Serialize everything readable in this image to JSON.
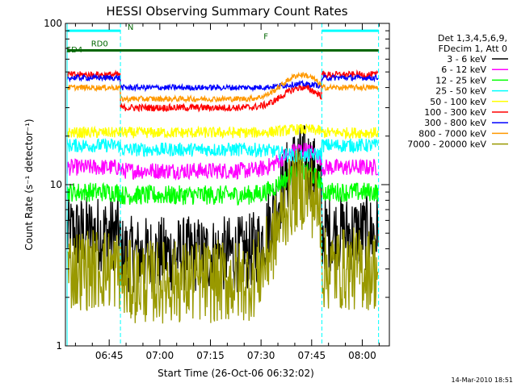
{
  "chart_data": {
    "type": "line",
    "title": "HESSI Observing Summary Count Rates",
    "xlabel": "Start Time (26-Oct-06 06:32:02)",
    "ylabel": "Count Rate (s⁻¹ detector⁻¹)",
    "y_scale": "log",
    "ylim": [
      1,
      100
    ],
    "xlim_minutes": [
      0,
      96
    ],
    "x_ticks": [
      {
        "t": 12.97,
        "label": "06:45"
      },
      {
        "t": 27.97,
        "label": "07:00"
      },
      {
        "t": 42.97,
        "label": "07:15"
      },
      {
        "t": 57.97,
        "label": "07:30"
      },
      {
        "t": 72.97,
        "label": "07:45"
      },
      {
        "t": 87.97,
        "label": "08:00"
      }
    ],
    "y_ticks": [
      {
        "v": 1,
        "label": "1"
      },
      {
        "v": 10,
        "label": "10"
      },
      {
        "v": 100,
        "label": "100"
      }
    ],
    "legend_header": [
      "Det 1,3,4,5,6,9,",
      "FDecim 1, Att 0"
    ],
    "legend_position": "right",
    "series": [
      {
        "name": "3 - 6 keV",
        "color": "#000000",
        "base": 3.7,
        "flare": 14.0,
        "boundary": 5.0,
        "noise": 0.55
      },
      {
        "name": "6 - 12 keV",
        "color": "#ff00ff",
        "base": 12.2,
        "flare": 16.5,
        "boundary": 12.8,
        "noise": 0.12
      },
      {
        "name": "12 - 25 keV",
        "color": "#00ff00",
        "base": 8.6,
        "flare": 12.0,
        "boundary": 9.0,
        "noise": 0.14
      },
      {
        "name": "25 - 50 keV",
        "color": "#00ffff",
        "base": 16.5,
        "flare": 15.0,
        "boundary": 17.5,
        "noise": 0.1
      },
      {
        "name": "50 - 100 keV",
        "color": "#ffff00",
        "base": 21.0,
        "flare": 22.0,
        "boundary": 21.0,
        "noise": 0.08
      },
      {
        "name": "100 - 300 keV",
        "color": "#ff0000",
        "base": 30.0,
        "flare": 40.0,
        "boundary": 48.0,
        "noise": 0.05
      },
      {
        "name": "300 - 800 keV",
        "color": "#0000ff",
        "base": 40.0,
        "flare": 42.0,
        "boundary": 46.0,
        "noise": 0.04
      },
      {
        "name": "800 - 7000 keV",
        "color": "#ff9900",
        "base": 34.0,
        "flare": 48.0,
        "boundary": 40.0,
        "noise": 0.04
      },
      {
        "name": "7000 - 20000 keV",
        "color": "#999900",
        "base": 2.5,
        "flare": 9.5,
        "boundary": 3.0,
        "noise": 0.6
      }
    ],
    "annotations": [
      {
        "text": "SD4",
        "t": 0.2,
        "v": 66
      },
      {
        "text": "RD0",
        "t": 7.6,
        "v": 72
      },
      {
        "text": "N",
        "t": 18.4,
        "v": 91
      },
      {
        "text": "F",
        "t": 58.7,
        "v": 80
      }
    ],
    "vertical_markers_minutes": [
      0.5,
      16.3,
      76.0,
      92.8
    ],
    "green_bar_level": 68,
    "cyan_bar_level": 90
  },
  "footer_stamp": "14-Mar-2010 18:51",
  "colors": {
    "background": "#ffffff",
    "axes": "#000000",
    "marker": "#00ffff"
  }
}
